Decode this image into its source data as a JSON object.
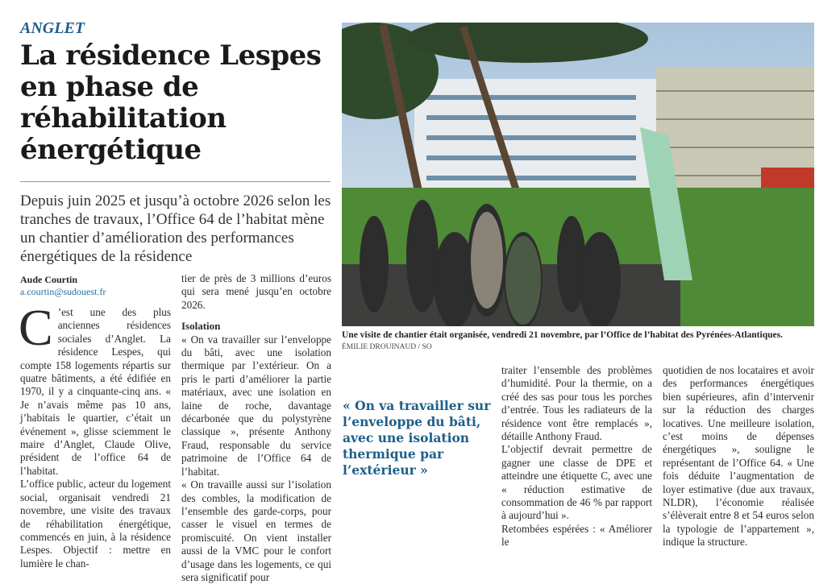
{
  "article": {
    "kicker": "ANGLET",
    "headline": "La résidence Lespes en phase de réhabilitation énergétique",
    "chapo": "Depuis juin 2025 et jusqu’à octobre 2026 selon les tranches de travaux, l’Office 64 de l’habitat mène un chantier d’amélioration des performances énergétiques de la résidence",
    "author": "Aude Courtin",
    "email": "a.courtin@sudouest.fr",
    "dropcap": "C",
    "col1": [
      "’est une des plus anciennes résidences sociales d’Anglet. La résidence Lespes, qui compte 158 logements répartis sur quatre bâtiments, a été édifiée en 1970, il y a cinquante-cinq ans. « Je n’avais même pas 10 ans, j’habitais le quartier, c’était un événement », glisse sciemment le maire d’Anglet, Claude Olive, président de l’office 64 de l’habitat.",
      "L’office public, acteur du logement social, organisait vendredi 21 novembre, une visite des travaux de réhabilitation énergétique, commencés en juin, à la résidence Lespes. Objectif : mettre en lumière le chan-"
    ],
    "col2": {
      "intro": "tier de près de 3 millions d’euros qui sera mené jusqu’en octobre 2026.",
      "subhead": "Isolation",
      "paragraphs": [
        "« On va travailler sur l’enveloppe du bâti, avec une isolation thermique par l’extérieur. On a pris le parti d’améliorer la partie matériaux, avec une isolation en laine de roche, davantage décarbonée que du polystyrène classique », présente Anthony Fraud, responsable du service patrimoine de l’Office 64 de l’habitat.",
        "« On travaille aussi sur l’isolation des combles, la modification de l’ensemble des garde-corps, pour casser le visuel en termes de promiscuité. On vient installer aussi de la VMC pour le confort d’usage dans les logements, ce qui sera significatif pour"
      ]
    },
    "col3": [
      "traiter l’ensemble des problèmes d’humidité. Pour la thermie, on a créé des sas pour tous les porches d’entrée. Tous les radiateurs de la résidence vont être remplacés », détaille Anthony Fraud.",
      "L’objectif devrait permettre de gagner une classe de DPE et atteindre une étiquette C, avec une « réduction estimative de consommation de 46 % par rapport à aujourd’hui ».",
      "Retombées espérées : « Améliorer le"
    ],
    "col4": [
      "quotidien de nos locataires et avoir des performances énergétiques bien supérieures, afin d’intervenir sur la réduction des charges locatives. Une meilleure isolation, c’est moins de dépenses énergétiques », souligne le représentant de l’Office 64. « Une fois déduite l’augmentation de loyer estimative (due aux travaux, NLDR), l’économie réalisée s’élèverait entre 8 et 54 euros selon la typologie de l’appartement », indique la structure."
    ],
    "pull_quote": "« On va travailler sur l’enveloppe du bâti, avec une isolation thermique par l’extérieur »",
    "photo": {
      "caption": "Une visite de chantier était organisée, vendredi 21 novembre, par l’Office de l’habitat des Pyrénées-Atlantiques.",
      "credit": "ÉMILIE DROUINAUD / SO"
    }
  },
  "colors": {
    "accent": "#1d5f8a",
    "link": "#1d6fa0"
  }
}
